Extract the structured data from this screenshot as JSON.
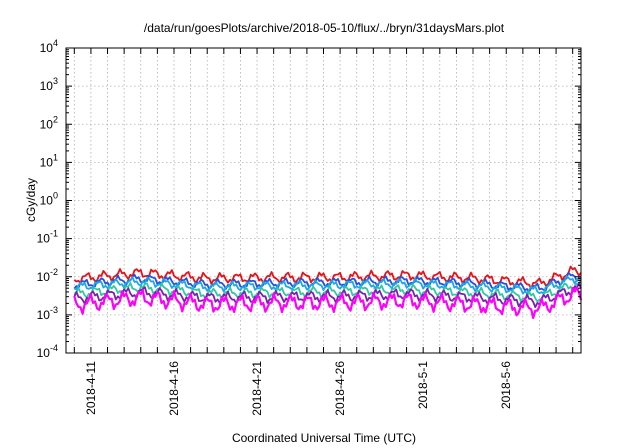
{
  "chart_data": {
    "type": "line",
    "title": "/data/run/goesPlots/archive/2018-05-10/flux/../bryn/31daysMars.plot",
    "xlabel": "Coordinated Universal Time (UTC)",
    "ylabel": "cGy/day",
    "yscale": "log",
    "ylim": [
      0.0001,
      10000
    ],
    "xlim": [
      "2018-04-09T12:00",
      "2018-05-10T12:00"
    ],
    "y_ticks": [
      {
        "base": "10",
        "exp": "4"
      },
      {
        "base": "10",
        "exp": "3"
      },
      {
        "base": "10",
        "exp": "2"
      },
      {
        "base": "10",
        "exp": "1"
      },
      {
        "base": "10",
        "exp": "0"
      },
      {
        "base": "10",
        "exp": "-1"
      },
      {
        "base": "10",
        "exp": "-2"
      },
      {
        "base": "10",
        "exp": "-3"
      },
      {
        "base": "10",
        "exp": "-4"
      }
    ],
    "x_ticks": [
      "2018-4-11",
      "2018-4-16",
      "2018-4-21",
      "2018-4-26",
      "2018-5-1",
      "2018-5-6"
    ],
    "grid": true,
    "legend": "none",
    "series": [
      {
        "color": "#e8121a",
        "x": [
          "2018-04-10",
          "2018-04-14",
          "2018-04-18",
          "2018-04-22",
          "2018-04-26",
          "2018-04-30",
          "2018-05-04",
          "2018-05-08",
          "2018-05-10"
        ],
        "values": [
          0.0085,
          0.012,
          0.0085,
          0.009,
          0.0095,
          0.011,
          0.0095,
          0.007,
          0.015
        ]
      },
      {
        "color": "#2a4fe0",
        "x": [
          "2018-04-10",
          "2018-04-14",
          "2018-04-18",
          "2018-04-22",
          "2018-04-26",
          "2018-04-30",
          "2018-05-04",
          "2018-05-08",
          "2018-05-10"
        ],
        "values": [
          0.006,
          0.0085,
          0.006,
          0.0065,
          0.007,
          0.008,
          0.007,
          0.0052,
          0.011
        ]
      },
      {
        "color": "#1aa8e8",
        "x": [
          "2018-04-10",
          "2018-04-14",
          "2018-04-18",
          "2018-04-22",
          "2018-04-26",
          "2018-04-30",
          "2018-05-04",
          "2018-05-08",
          "2018-05-10"
        ],
        "values": [
          0.0052,
          0.0072,
          0.0052,
          0.0056,
          0.006,
          0.0068,
          0.006,
          0.0045,
          0.0095
        ]
      },
      {
        "color": "#2ec9a0",
        "x": [
          "2018-04-10",
          "2018-04-14",
          "2018-04-18",
          "2018-04-22",
          "2018-04-26",
          "2018-04-30",
          "2018-05-04",
          "2018-05-08",
          "2018-05-10"
        ],
        "values": [
          0.0034,
          0.005,
          0.0034,
          0.0037,
          0.004,
          0.0046,
          0.004,
          0.003,
          0.0065
        ]
      },
      {
        "color": "#7a1fb0",
        "x": [
          "2018-04-10",
          "2018-04-14",
          "2018-04-18",
          "2018-04-22",
          "2018-04-26",
          "2018-04-30",
          "2018-05-04",
          "2018-05-08",
          "2018-05-10"
        ],
        "values": [
          0.0026,
          0.0037,
          0.0026,
          0.0028,
          0.003,
          0.0035,
          0.003,
          0.0024,
          0.005
        ]
      },
      {
        "color": "#ff00ff",
        "x": [
          "2018-04-10",
          "2018-04-14",
          "2018-04-18",
          "2018-04-22",
          "2018-04-26",
          "2018-04-30",
          "2018-05-04",
          "2018-05-08",
          "2018-05-10"
        ],
        "values": [
          0.0017,
          0.0026,
          0.0017,
          0.0019,
          0.002,
          0.0024,
          0.002,
          0.0016,
          0.0038
        ]
      }
    ]
  }
}
